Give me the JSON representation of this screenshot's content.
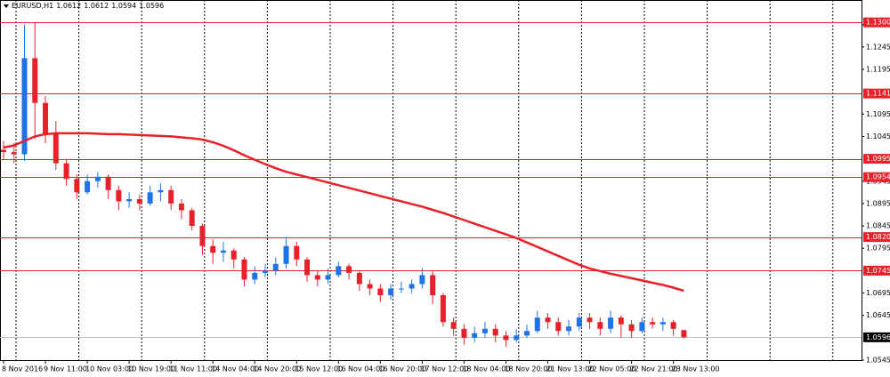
{
  "chart_data": {
    "type": "candlestick",
    "title": "EURUSD,H1",
    "header_prices": [
      1.0612,
      1.0612,
      1.0594,
      1.0596
    ],
    "categories": [
      "8 Nov 2016",
      null,
      null,
      null,
      "9 Nov 11:00",
      null,
      null,
      null,
      "10 Nov 03:00",
      null,
      null,
      null,
      "10 Nov 19:00",
      null,
      null,
      null,
      "11 Nov 11:00",
      null,
      null,
      null,
      "14 Nov 04:00",
      null,
      null,
      null,
      "14 Nov 20:00",
      null,
      null,
      null,
      "15 Nov 12:00",
      null,
      null,
      null,
      "16 Nov 04:00",
      null,
      null,
      null,
      "16 Nov 20:00",
      null,
      null,
      null,
      "17 Nov 12:00",
      null,
      null,
      null,
      "18 Nov 04:00",
      null,
      null,
      null,
      "18 Nov 20:00",
      null,
      null,
      null,
      "21 Nov 13:00",
      null,
      null,
      null,
      "22 Nov 05:00",
      null,
      null,
      null,
      "22 Nov 21:00",
      null,
      null,
      null,
      "23 Nov 13:00",
      null
    ],
    "open": [
      1.1015,
      1.101,
      1.1005,
      1.122,
      1.112,
      1.105,
      1.0985,
      1.095,
      1.092,
      1.0945,
      1.0955,
      1.0925,
      1.09,
      1.0905,
      1.0895,
      1.092,
      1.0925,
      1.0895,
      1.088,
      1.0845,
      1.08,
      1.0785,
      1.079,
      1.077,
      1.0725,
      1.074,
      1.0745,
      1.076,
      1.08,
      1.077,
      1.0735,
      1.0725,
      1.0735,
      1.0755,
      1.074,
      1.0715,
      1.0705,
      1.069,
      1.0705,
      1.0705,
      1.0715,
      1.0735,
      1.069,
      1.063,
      1.0615,
      1.0595,
      1.0605,
      1.0615,
      1.06,
      1.059,
      1.06,
      1.061,
      1.064,
      1.063,
      1.061,
      1.062,
      1.064,
      1.063,
      1.0615,
      1.064,
      1.0625,
      1.061,
      1.063,
      1.0625,
      1.063,
      1.0612
    ],
    "high": [
      1.1035,
      1.103,
      1.1295,
      1.13,
      1.1135,
      1.108,
      1.0995,
      1.096,
      1.096,
      1.0965,
      1.096,
      1.0935,
      1.092,
      1.0915,
      1.0935,
      1.094,
      1.0935,
      1.0905,
      1.0885,
      1.085,
      1.0815,
      1.081,
      1.0795,
      1.0775,
      1.0755,
      1.076,
      1.0775,
      1.082,
      1.081,
      1.0775,
      1.0745,
      1.075,
      1.0765,
      1.076,
      1.0745,
      1.0725,
      1.0715,
      1.0715,
      1.072,
      1.0725,
      1.075,
      1.0745,
      1.0695,
      1.064,
      1.0625,
      1.062,
      1.063,
      1.0625,
      1.061,
      1.0615,
      1.0625,
      1.0655,
      1.065,
      1.064,
      1.0635,
      1.065,
      1.065,
      1.064,
      1.0655,
      1.0645,
      1.0635,
      1.064,
      1.064,
      1.064,
      1.0635,
      1.0612
    ],
    "low": [
      1.0995,
      1.0985,
      1.099,
      1.104,
      1.103,
      1.097,
      1.0935,
      1.0905,
      1.0915,
      1.093,
      1.0905,
      1.088,
      1.0885,
      1.088,
      1.089,
      1.09,
      1.088,
      1.086,
      1.0835,
      1.078,
      1.076,
      1.0765,
      1.075,
      1.071,
      1.0715,
      1.073,
      1.0735,
      1.075,
      1.0755,
      1.072,
      1.071,
      1.0715,
      1.073,
      1.0725,
      1.07,
      1.069,
      1.0675,
      1.068,
      1.0695,
      1.0695,
      1.0705,
      1.067,
      1.062,
      1.06,
      1.058,
      1.0585,
      1.0595,
      1.0585,
      1.0575,
      1.0585,
      1.0595,
      1.0605,
      1.0615,
      1.06,
      1.06,
      1.061,
      1.0615,
      1.06,
      1.0605,
      1.0595,
      1.0595,
      1.0605,
      1.0615,
      1.061,
      1.06,
      1.0594
    ],
    "close": [
      1.101,
      1.1005,
      1.122,
      1.112,
      1.105,
      1.0985,
      1.095,
      1.092,
      1.0945,
      1.0955,
      1.0925,
      1.09,
      1.0905,
      1.0895,
      1.092,
      1.0925,
      1.0895,
      1.088,
      1.0845,
      1.08,
      1.0785,
      1.079,
      1.077,
      1.0725,
      1.074,
      1.0745,
      1.076,
      1.08,
      1.077,
      1.0735,
      1.0725,
      1.0735,
      1.0755,
      1.074,
      1.0715,
      1.0705,
      1.069,
      1.0705,
      1.0705,
      1.0715,
      1.0735,
      1.069,
      1.063,
      1.0615,
      1.0595,
      1.0605,
      1.0615,
      1.06,
      1.059,
      1.06,
      1.061,
      1.064,
      1.063,
      1.061,
      1.062,
      1.064,
      1.063,
      1.0615,
      1.064,
      1.0625,
      1.061,
      1.063,
      1.0625,
      1.063,
      1.0615,
      1.0596
    ],
    "up_color": "#1e73e8",
    "down_color": "#e8202a",
    "moving_average": {
      "color": "#e8202a",
      "values": [
        1.102,
        1.1025,
        1.1035,
        1.1045,
        1.105,
        1.1052,
        1.1052,
        1.1052,
        1.1052,
        1.1051,
        1.105,
        1.105,
        1.1049,
        1.1048,
        1.1047,
        1.1046,
        1.1045,
        1.1043,
        1.1041,
        1.1038,
        1.1032,
        1.1024,
        1.1014,
        1.1003,
        1.0993,
        1.0983,
        1.0974,
        1.0966,
        1.096,
        1.0954,
        1.0948,
        1.0942,
        1.0936,
        1.093,
        1.0924,
        1.0918,
        1.0912,
        1.0906,
        1.09,
        1.0894,
        1.0888,
        1.0881,
        1.0874,
        1.0866,
        1.0858,
        1.085,
        1.0842,
        1.0834,
        1.0826,
        1.0818,
        1.0808,
        1.0798,
        1.0788,
        1.0778,
        1.0768,
        1.0758,
        1.075,
        1.0744,
        1.0738,
        1.0733,
        1.0728,
        1.0723,
        1.0718,
        1.0713,
        1.0707,
        1.07
      ]
    },
    "levels": [
      {
        "value": 1.13,
        "label": "1.1300"
      },
      1.1141,
      1.0995,
      1.0954,
      {
        "value": 1.082,
        "label": "1.0820"
      },
      1.0745
    ],
    "level_color": "#e8202a",
    "last_price": 1.0596,
    "ylim": [
      1.0545,
      1.135
    ],
    "yticks": [
      1.0545,
      1.0645,
      1.0695,
      1.0795,
      1.0845,
      1.0895,
      1.0945,
      1.1045,
      1.1095,
      1.1195,
      1.1245,
      1.1295
    ],
    "grid": true
  }
}
